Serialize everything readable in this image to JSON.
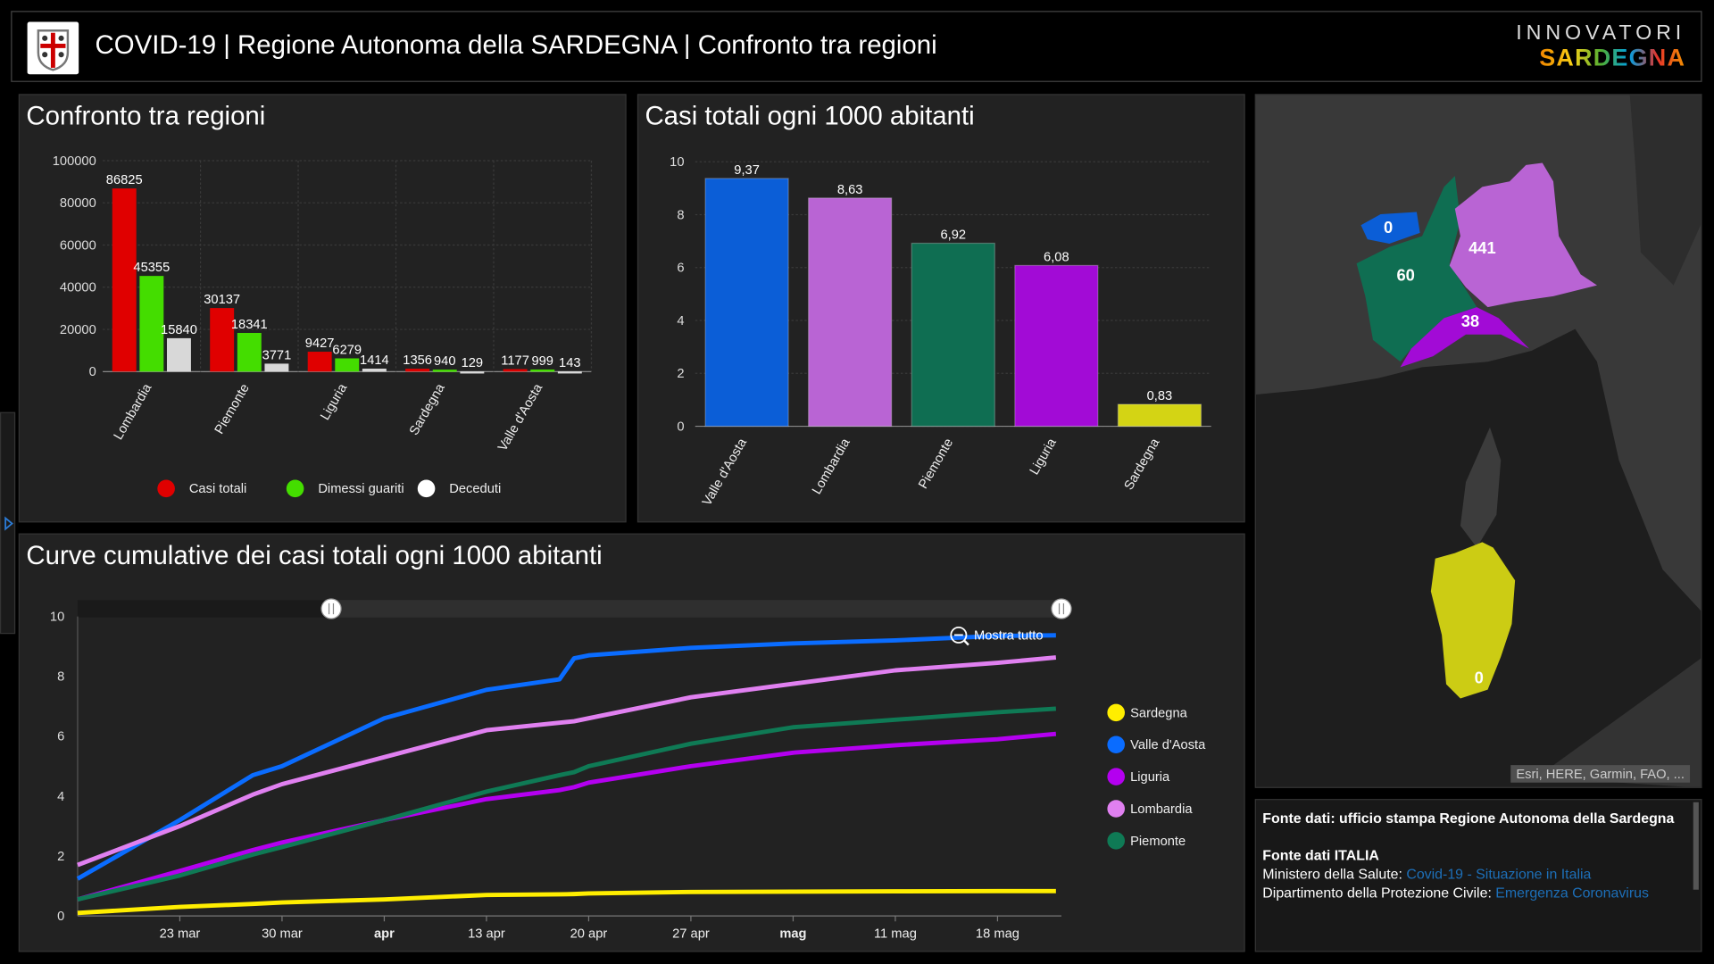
{
  "header": {
    "title": "COVID-19 | Regione Autonoma della SARDEGNA | Confronto tra regioni",
    "brand_line1": "INNOVATORI",
    "brand_line2": "SARDEGNA"
  },
  "map": {
    "attribution": "Esri, HERE, Garmin, FAO, ...",
    "labels": {
      "valle_daosta": "0",
      "piemonte": "60",
      "lombardia": "441",
      "liguria": "38",
      "sardegna": "0"
    },
    "colors": {
      "valle_daosta": "#0b5ed7",
      "piemonte": "#0f6e52",
      "lombardia": "#b964d4",
      "liguria": "#a20bd6",
      "sardegna": "#cccc14"
    }
  },
  "source": {
    "line1": "Fonte dati: ufficio stampa Regione Autonoma della Sardegna",
    "line2": "Fonte dati ITALIA",
    "line3_prefix": "Ministero della Salute: ",
    "line3_link": "Covid-19 - Situazione in Italia",
    "line4_prefix": "Dipartimento della Protezione Civile: ",
    "line4_link": "Emergenza Coronavirus"
  },
  "chart_data": [
    {
      "id": "bar-regions",
      "type": "bar",
      "title": "Confronto tra regioni",
      "categories": [
        "Lombardia",
        "Piemonte",
        "Liguria",
        "Sardegna",
        "Valle d'Aosta"
      ],
      "series": [
        {
          "name": "Casi totali",
          "color": "#e00000",
          "values": [
            86825,
            30137,
            9427,
            1356,
            1177
          ]
        },
        {
          "name": "Dimessi guariti",
          "color": "#44dd00",
          "values": [
            45355,
            18341,
            6279,
            940,
            999
          ]
        },
        {
          "name": "Deceduti",
          "color": "#d8d8d8",
          "values": [
            15840,
            3771,
            1414,
            129,
            143
          ]
        }
      ],
      "ylim": [
        0,
        100000
      ],
      "yticks": [
        0,
        20000,
        40000,
        60000,
        80000,
        100000
      ],
      "grid": true,
      "legend": "bottom"
    },
    {
      "id": "bar-per-1000",
      "type": "bar",
      "title": "Casi totali ogni 1000 abitanti",
      "categories": [
        "Valle d'Aosta",
        "Lombardia",
        "Piemonte",
        "Liguria",
        "Sardegna"
      ],
      "values": [
        9.37,
        8.63,
        6.92,
        6.08,
        0.83
      ],
      "labels": [
        "9,37",
        "8,63",
        "6,92",
        "6,08",
        "0,83"
      ],
      "colors": [
        "#0b5ed7",
        "#b964d4",
        "#0f6e52",
        "#a20bd6",
        "#d4d414"
      ],
      "ylim": [
        0,
        10
      ],
      "yticks": [
        0,
        2,
        4,
        6,
        8,
        10
      ],
      "grid": true
    },
    {
      "id": "line-cumulative",
      "type": "line",
      "title": "Curve cumulative dei casi totali ogni 1000 abitanti",
      "zoom_label": "Mostra tutto",
      "xrange": [
        "16 mar",
        "22 mag"
      ],
      "xticks": [
        {
          "date": "23 mar",
          "label": "23 mar",
          "bold": false
        },
        {
          "date": "30 mar",
          "label": "30 mar",
          "bold": false
        },
        {
          "date": "6 apr",
          "label": "apr",
          "bold": true
        },
        {
          "date": "13 apr",
          "label": "13 apr",
          "bold": false
        },
        {
          "date": "20 apr",
          "label": "20 apr",
          "bold": false
        },
        {
          "date": "27 apr",
          "label": "27 apr",
          "bold": false
        },
        {
          "date": "4 mag",
          "label": "mag",
          "bold": true
        },
        {
          "date": "11 mag",
          "label": "11 mag",
          "bold": false
        },
        {
          "date": "18 mag",
          "label": "18 mag",
          "bold": false
        }
      ],
      "ylim": [
        0,
        10
      ],
      "yticks": [
        0,
        2,
        4,
        6,
        8,
        10
      ],
      "legend": "right",
      "dates": [
        "16 mar",
        "23 mar",
        "28 mar",
        "30 mar",
        "6 apr",
        "13 apr",
        "18 apr",
        "19 apr",
        "20 apr",
        "27 apr",
        "4 mag",
        "11 mag",
        "18 mag",
        "22 mag"
      ],
      "series": [
        {
          "name": "Sardegna",
          "color": "#ffee00",
          "values": [
            0.1,
            0.3,
            0.4,
            0.45,
            0.55,
            0.7,
            0.72,
            0.73,
            0.75,
            0.8,
            0.81,
            0.82,
            0.83,
            0.83
          ]
        },
        {
          "name": "Valle d'Aosta",
          "color": "#0a6cff",
          "values": [
            1.24,
            3.2,
            4.7,
            5.0,
            6.6,
            7.55,
            7.9,
            8.6,
            8.7,
            8.95,
            9.1,
            9.2,
            9.35,
            9.37
          ]
        },
        {
          "name": "Liguria",
          "color": "#b400f0",
          "values": [
            0.55,
            1.5,
            2.2,
            2.45,
            3.2,
            3.9,
            4.2,
            4.3,
            4.45,
            5.0,
            5.45,
            5.7,
            5.9,
            6.08
          ]
        },
        {
          "name": "Lombardia",
          "color": "#e080f0",
          "values": [
            1.7,
            3.0,
            4.05,
            4.4,
            5.3,
            6.2,
            6.45,
            6.5,
            6.6,
            7.3,
            7.75,
            8.2,
            8.45,
            8.63
          ]
        },
        {
          "name": "Piemonte",
          "color": "#0f7a55",
          "values": [
            0.55,
            1.35,
            2.05,
            2.3,
            3.2,
            4.15,
            4.7,
            4.8,
            5.0,
            5.75,
            6.3,
            6.55,
            6.8,
            6.92
          ]
        }
      ]
    }
  ]
}
